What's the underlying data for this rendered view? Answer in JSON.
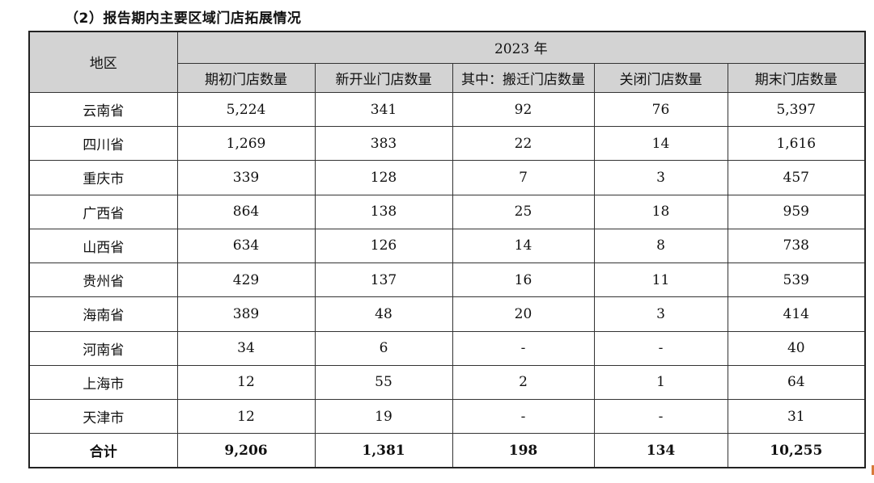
{
  "heading": "（2）报告期内主要区域门店拓展情况",
  "table": {
    "region_header": "地区",
    "year_header": "2023 年",
    "columns": [
      "期初门店数量",
      "新开业门店数量",
      "其中：搬迁门店数量",
      "关闭门店数量",
      "期末门店数量"
    ],
    "rows": [
      {
        "region": "云南省",
        "v": [
          "5,224",
          "341",
          "92",
          "76",
          "5,397"
        ]
      },
      {
        "region": "四川省",
        "v": [
          "1,269",
          "383",
          "22",
          "14",
          "1,616"
        ]
      },
      {
        "region": "重庆市",
        "v": [
          "339",
          "128",
          "7",
          "3",
          "457"
        ]
      },
      {
        "region": "广西省",
        "v": [
          "864",
          "138",
          "25",
          "18",
          "959"
        ]
      },
      {
        "region": "山西省",
        "v": [
          "634",
          "126",
          "14",
          "8",
          "738"
        ]
      },
      {
        "region": "贵州省",
        "v": [
          "429",
          "137",
          "16",
          "11",
          "539"
        ]
      },
      {
        "region": "海南省",
        "v": [
          "389",
          "48",
          "20",
          "3",
          "414"
        ]
      },
      {
        "region": "河南省",
        "v": [
          "34",
          "6",
          "-",
          "-",
          "40"
        ]
      },
      {
        "region": "上海市",
        "v": [
          "12",
          "55",
          "2",
          "1",
          "64"
        ]
      },
      {
        "region": "天津市",
        "v": [
          "12",
          "19",
          "-",
          "-",
          "31"
        ]
      }
    ],
    "total": {
      "region": "合计",
      "v": [
        "9,206",
        "1,381",
        "198",
        "134",
        "10,255"
      ]
    }
  }
}
